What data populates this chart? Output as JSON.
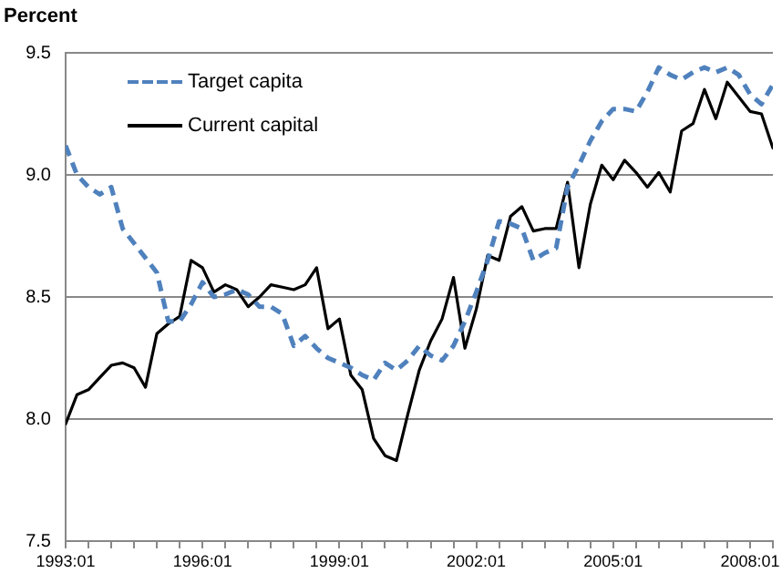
{
  "chart_data": {
    "type": "line",
    "ylabel": "Percent",
    "x": [
      "1993-01",
      "1993-04",
      "1993-07",
      "1993-10",
      "1994-01",
      "1994-04",
      "1994-07",
      "1994-10",
      "1995-01",
      "1995-04",
      "1995-07",
      "1995-10",
      "1996-01",
      "1996-04",
      "1996-07",
      "1996-10",
      "1997-01",
      "1997-04",
      "1997-07",
      "1997-10",
      "1998-01",
      "1998-04",
      "1998-07",
      "1998-10",
      "1999-01",
      "1999-04",
      "1999-07",
      "1999-10",
      "2000-01",
      "2000-04",
      "2000-07",
      "2000-10",
      "2001-01",
      "2001-04",
      "2001-07",
      "2001-10",
      "2002-01",
      "2002-04",
      "2002-07",
      "2002-10",
      "2003-01",
      "2003-04",
      "2003-07",
      "2003-10",
      "2004-01",
      "2004-04",
      "2004-07",
      "2004-10",
      "2005-01",
      "2005-04",
      "2005-07",
      "2005-10",
      "2006-01",
      "2006-04",
      "2006-07",
      "2006-10",
      "2007-01",
      "2007-04",
      "2007-07",
      "2007-10",
      "2008-01",
      "2008-04",
      "2008-07"
    ],
    "series": [
      {
        "name": "Target capita",
        "color": "#4f81bd",
        "line_style": "dashed",
        "values": [
          9.12,
          9.0,
          8.95,
          8.92,
          8.95,
          8.78,
          8.72,
          8.66,
          8.6,
          8.4,
          8.4,
          8.47,
          8.56,
          8.5,
          8.51,
          8.53,
          8.51,
          8.46,
          8.46,
          8.43,
          8.3,
          8.34,
          8.29,
          8.25,
          8.23,
          8.21,
          8.18,
          8.16,
          8.23,
          8.2,
          8.24,
          8.3,
          8.26,
          8.24,
          8.3,
          8.4,
          8.52,
          8.65,
          8.81,
          8.8,
          8.78,
          8.65,
          8.68,
          8.7,
          8.95,
          9.04,
          9.14,
          9.22,
          9.27,
          9.27,
          9.26,
          9.34,
          9.44,
          9.41,
          9.39,
          9.42,
          9.44,
          9.42,
          9.44,
          9.41,
          9.33,
          9.29,
          9.37
        ]
      },
      {
        "name": "Current capital",
        "color": "#000000",
        "line_style": "solid",
        "values": [
          7.98,
          8.1,
          8.12,
          8.17,
          8.22,
          8.23,
          8.21,
          8.13,
          8.35,
          8.39,
          8.42,
          8.65,
          8.62,
          8.52,
          8.55,
          8.53,
          8.46,
          8.5,
          8.55,
          8.54,
          8.53,
          8.55,
          8.62,
          8.37,
          8.41,
          8.18,
          8.12,
          7.92,
          7.85,
          7.83,
          8.02,
          8.2,
          8.32,
          8.41,
          8.58,
          8.29,
          8.45,
          8.67,
          8.65,
          8.83,
          8.87,
          8.77,
          8.78,
          8.78,
          8.97,
          8.62,
          8.88,
          9.04,
          8.98,
          9.06,
          9.01,
          8.95,
          9.01,
          8.93,
          9.18,
          9.21,
          9.35,
          9.23,
          9.38,
          9.32,
          9.26,
          9.25,
          9.11
        ]
      }
    ],
    "xlim": [
      "1993-01",
      "2008-07"
    ],
    "xticks": [
      {
        "value": "1993-01",
        "label": "1993:01"
      },
      {
        "value": "1993-07",
        "label": null
      },
      {
        "value": "1994-01",
        "label": null
      },
      {
        "value": "1994-07",
        "label": null
      },
      {
        "value": "1995-01",
        "label": null
      },
      {
        "value": "1995-07",
        "label": null
      },
      {
        "value": "1996-01",
        "label": "1996:01"
      },
      {
        "value": "1996-07",
        "label": null
      },
      {
        "value": "1997-01",
        "label": null
      },
      {
        "value": "1997-07",
        "label": null
      },
      {
        "value": "1998-01",
        "label": null
      },
      {
        "value": "1998-07",
        "label": null
      },
      {
        "value": "1999-01",
        "label": "1999:01"
      },
      {
        "value": "1999-07",
        "label": null
      },
      {
        "value": "2000-01",
        "label": null
      },
      {
        "value": "2000-07",
        "label": null
      },
      {
        "value": "2001-01",
        "label": null
      },
      {
        "value": "2001-07",
        "label": null
      },
      {
        "value": "2002-01",
        "label": "2002:01"
      },
      {
        "value": "2002-07",
        "label": null
      },
      {
        "value": "2003-01",
        "label": null
      },
      {
        "value": "2003-07",
        "label": null
      },
      {
        "value": "2004-01",
        "label": null
      },
      {
        "value": "2004-07",
        "label": null
      },
      {
        "value": "2005-01",
        "label": "2005:01"
      },
      {
        "value": "2005-07",
        "label": null
      },
      {
        "value": "2006-01",
        "label": null
      },
      {
        "value": "2006-07",
        "label": null
      },
      {
        "value": "2007-01",
        "label": null
      },
      {
        "value": "2007-07",
        "label": null
      },
      {
        "value": "2008-01",
        "label": "2008:01"
      },
      {
        "value": "2008-07",
        "label": null
      }
    ],
    "ylim": [
      7.5,
      9.5
    ],
    "yticks": [
      7.5,
      {
        "value": 8,
        "label": "8.0"
      },
      {
        "value": 8.5,
        "label": "8.5"
      },
      {
        "value": 9,
        "label": "9.0"
      },
      9.5
    ],
    "grid": "y",
    "legend": "top left",
    "marker": "none"
  }
}
